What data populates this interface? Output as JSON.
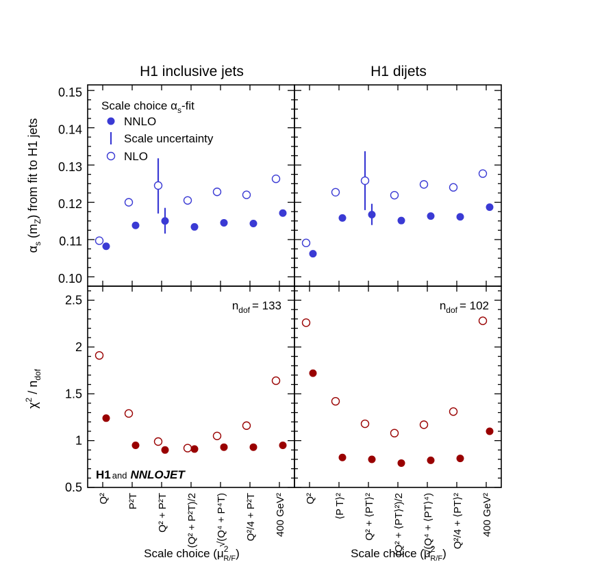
{
  "chart_data": {
    "type": "scatter",
    "panels": [
      {
        "title": "H1 inclusive jets",
        "x_axis_label": "Scale choice (μ²R/F)",
        "ndof_label": "n",
        "ndof_sub": "dof",
        "ndof_value": "= 133",
        "logo": {
          "h1": "H1",
          "and": "and",
          "nnlojet": "NNLOJET"
        },
        "scales": [
          {
            "label": "Q²"
          },
          {
            "label": "P²T"
          },
          {
            "label": "Q² + P²T"
          },
          {
            "label": "(Q² + P²T)/2"
          },
          {
            "label": "√(Q⁴ + P⁴T)"
          },
          {
            "label": "Q²/4 + P²T"
          },
          {
            "label": "400 GeV²"
          }
        ],
        "alphas": {
          "nnlo": [
            0.1087,
            0.1143,
            0.1155,
            0.1139,
            0.115,
            0.1148,
            0.1176
          ],
          "nnlo_err_low": [
            null,
            null,
            0.1121,
            null,
            null,
            null,
            null
          ],
          "nnlo_err_high": [
            null,
            null,
            0.119,
            null,
            null,
            null,
            null
          ],
          "nlo": [
            0.1102,
            0.1205,
            0.125,
            0.121,
            0.1233,
            0.1225,
            0.1268
          ],
          "nlo_err_low": [
            null,
            null,
            0.1175,
            null,
            null,
            null,
            null
          ],
          "nlo_err_high": [
            null,
            null,
            0.1323,
            null,
            null,
            null,
            null
          ]
        },
        "chi2": {
          "nnlo": [
            1.24,
            0.95,
            0.9,
            0.91,
            0.93,
            0.93,
            0.95
          ],
          "nlo": [
            1.91,
            1.29,
            0.99,
            0.92,
            1.05,
            1.16,
            1.64
          ]
        }
      },
      {
        "title": "H1 dijets",
        "x_axis_label": "Scale choice (μ²R/F)",
        "ndof_label": "n",
        "ndof_sub": "dof",
        "ndof_value": "= 102",
        "scales": [
          {
            "label": "Q²"
          },
          {
            "label": "⟨P T⟩²"
          },
          {
            "label": "Q² + ⟨PT⟩²"
          },
          {
            "label": "(Q² + ⟨PT⟩²)/2"
          },
          {
            "label": "√(Q⁴ + ⟨PT⟩⁴)"
          },
          {
            "label": "Q²/4 + ⟨PT⟩²"
          },
          {
            "label": "400 GeV²"
          }
        ],
        "alphas": {
          "nnlo": [
            0.1067,
            0.1163,
            0.1172,
            0.1156,
            0.1168,
            0.1166,
            0.1192
          ],
          "nnlo_err_low": [
            null,
            null,
            0.1144,
            null,
            null,
            null,
            null
          ],
          "nnlo_err_high": [
            null,
            null,
            0.1201,
            null,
            null,
            null,
            null
          ],
          "nlo": [
            0.1096,
            0.1232,
            0.1263,
            0.1224,
            0.1253,
            0.1245,
            0.1282
          ],
          "nlo_err_low": [
            null,
            null,
            0.1184,
            null,
            null,
            null,
            null
          ],
          "nlo_err_high": [
            null,
            null,
            0.1342,
            null,
            null,
            null,
            null
          ]
        },
        "chi2": {
          "nnlo": [
            1.72,
            0.82,
            0.8,
            0.76,
            0.79,
            0.81,
            1.1
          ],
          "nlo": [
            2.26,
            1.42,
            1.18,
            1.08,
            1.17,
            1.31,
            2.28
          ]
        }
      }
    ],
    "top": {
      "ylabel": "αs (mZ) from fit to H1 jets",
      "ylabel_parts": {
        "alpha": "α",
        "s": "s",
        "paren1": " (m",
        "z": "Z",
        "rest": ") from fit to H1 jets"
      },
      "ylim": [
        0.098,
        0.152
      ],
      "yticks": [
        0.1,
        0.11,
        0.12,
        0.13,
        0.14,
        0.15
      ],
      "ytick_labels": [
        "0.10",
        "0.11",
        "0.12",
        "0.13",
        "0.14",
        "0.15"
      ]
    },
    "bottom": {
      "ylabel": "χ² / ndof",
      "ylabel_parts": {
        "chi": "χ",
        "sq": "2",
        "slash": " / n",
        "dof": "dof"
      },
      "ylim": [
        0.5,
        2.65
      ],
      "yticks": [
        0.5,
        1.0,
        1.5,
        2.0,
        2.5
      ],
      "ytick_labels": [
        "0.5",
        "1",
        "1.5",
        "2",
        "2.5"
      ]
    },
    "legend": {
      "title": "Scale choice αs-fit",
      "title_main": "Scale choice α",
      "title_sub": "s",
      "title_tail": "-fit",
      "entries": [
        "NNLO",
        "Scale uncertainty",
        "NLO"
      ],
      "position": "top-left"
    },
    "colors": {
      "alphas": "#3a3ad4",
      "chi2": "#990000"
    }
  }
}
